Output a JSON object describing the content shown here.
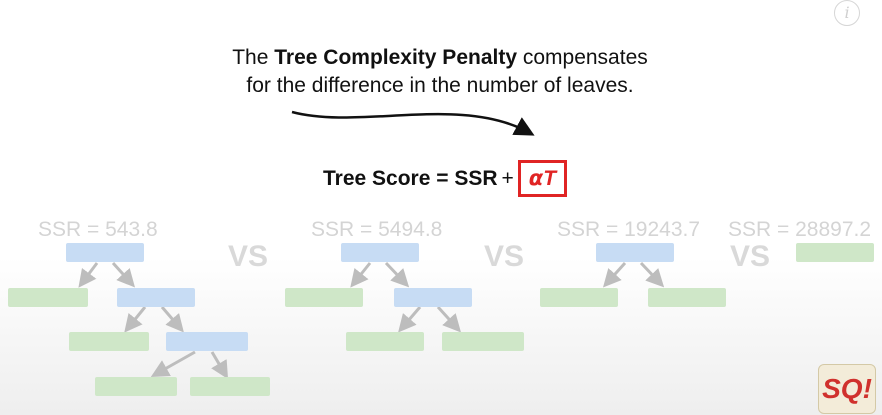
{
  "caption": {
    "line1_pre": "The ",
    "line1_bold": "Tree Complexity Penalty",
    "line1_post": " compensates",
    "line2": "for the difference in the number of leaves."
  },
  "formula": {
    "left": "Tree Score = SSR",
    "plus": "+",
    "alpha": "α",
    "t": "T"
  },
  "ssr_labels": [
    "SSR = 543.8",
    "SSR = 5494.8",
    "SSR = 19243.7",
    "SSR = 28897.2"
  ],
  "vs_label": "VS",
  "info_glyph": "i",
  "logo_text": "SQ!",
  "colors": {
    "accent": "#e02424",
    "node_blue": "#c7dcf4",
    "node_green": "#cfe7c8"
  }
}
